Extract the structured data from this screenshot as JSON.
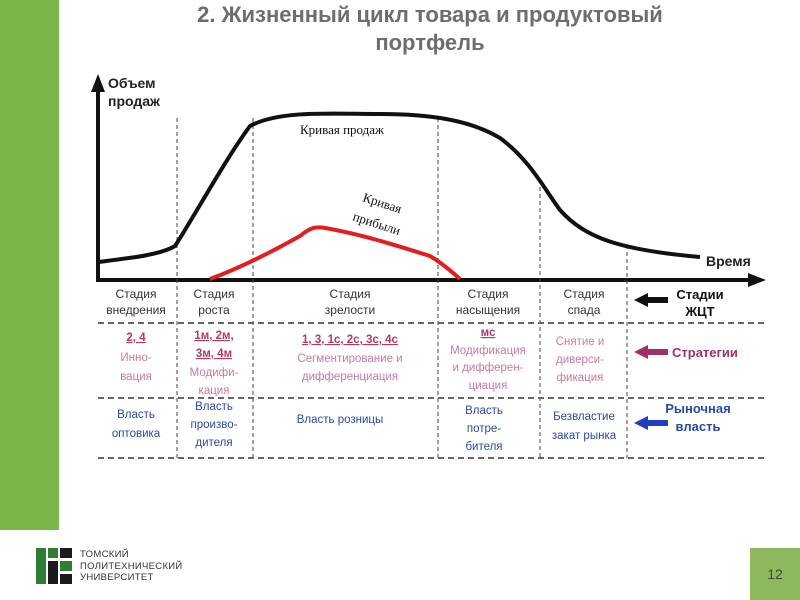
{
  "title": {
    "line1": "2. Жизненный цикл товара и продуктовый",
    "line2": "портфель"
  },
  "axes": {
    "y_label_line1": "Объем",
    "y_label_line2": "продаж",
    "x_label": "Время"
  },
  "curves": {
    "sales_label": "Кривая продаж",
    "profit_label_line1": "Кривая",
    "profit_label_line2": "прибыли"
  },
  "stages": [
    {
      "line1": "Стадия",
      "line2": "внедрения"
    },
    {
      "line1": "Стадия",
      "line2": "роста"
    },
    {
      "line1": "Стадия",
      "line2": "зрелости"
    },
    {
      "line1": "Стадия",
      "line2": "насыщения"
    },
    {
      "line1": "Стадия",
      "line2": "спада"
    }
  ],
  "row_labels": {
    "stages_line1": "Стадии",
    "stages_line2": "ЖЦТ",
    "strategies": "Стратегии",
    "power_line1": "Рыночная",
    "power_line2": "власть"
  },
  "strategies": [
    {
      "code": "2, 4",
      "text_line1": "Инно-",
      "text_line2": "вация",
      "text_line3": ""
    },
    {
      "code": "1м, 2м,",
      "code2": "3м, 4м",
      "text_line1": "Модифи-",
      "text_line2": "кация",
      "text_line3": ""
    },
    {
      "code": "1, 3, 1с, 2с, 3с, 4с",
      "text_line1": "Сегментирование и",
      "text_line2": "дифференциация",
      "text_line3": ""
    },
    {
      "code": "мс",
      "text_line1": "Модификация",
      "text_line2": "и дифферен-",
      "text_line3": "циация"
    },
    {
      "code": "",
      "text_line1": "Снятие и",
      "text_line2": "диверси-",
      "text_line3": "фикация"
    }
  ],
  "power": [
    {
      "line1": "Власть",
      "line2": "оптовика",
      "line3": ""
    },
    {
      "line1": "Власть",
      "line2": "произво-",
      "line3": "дителя"
    },
    {
      "line1": "Власть розницы",
      "line2": "",
      "line3": ""
    },
    {
      "line1": "Власть",
      "line2": "потре-",
      "line3": "бителя"
    },
    {
      "line1": "Безвластие",
      "line2": "закат рынка",
      "line3": ""
    }
  ],
  "footer": {
    "line1": "ТОМСКИЙ",
    "line2": "ПОЛИТЕХНИЧЕСКИЙ",
    "line3": "УНИВЕРСИТЕТ",
    "page_number": "12"
  },
  "colors": {
    "green": "#7ab648",
    "sales_curve": "#111111",
    "profit_curve": "#e02020",
    "strategy_text": "#b03a6a",
    "power_text": "#2a4aa0",
    "stage_text": "#333333"
  }
}
